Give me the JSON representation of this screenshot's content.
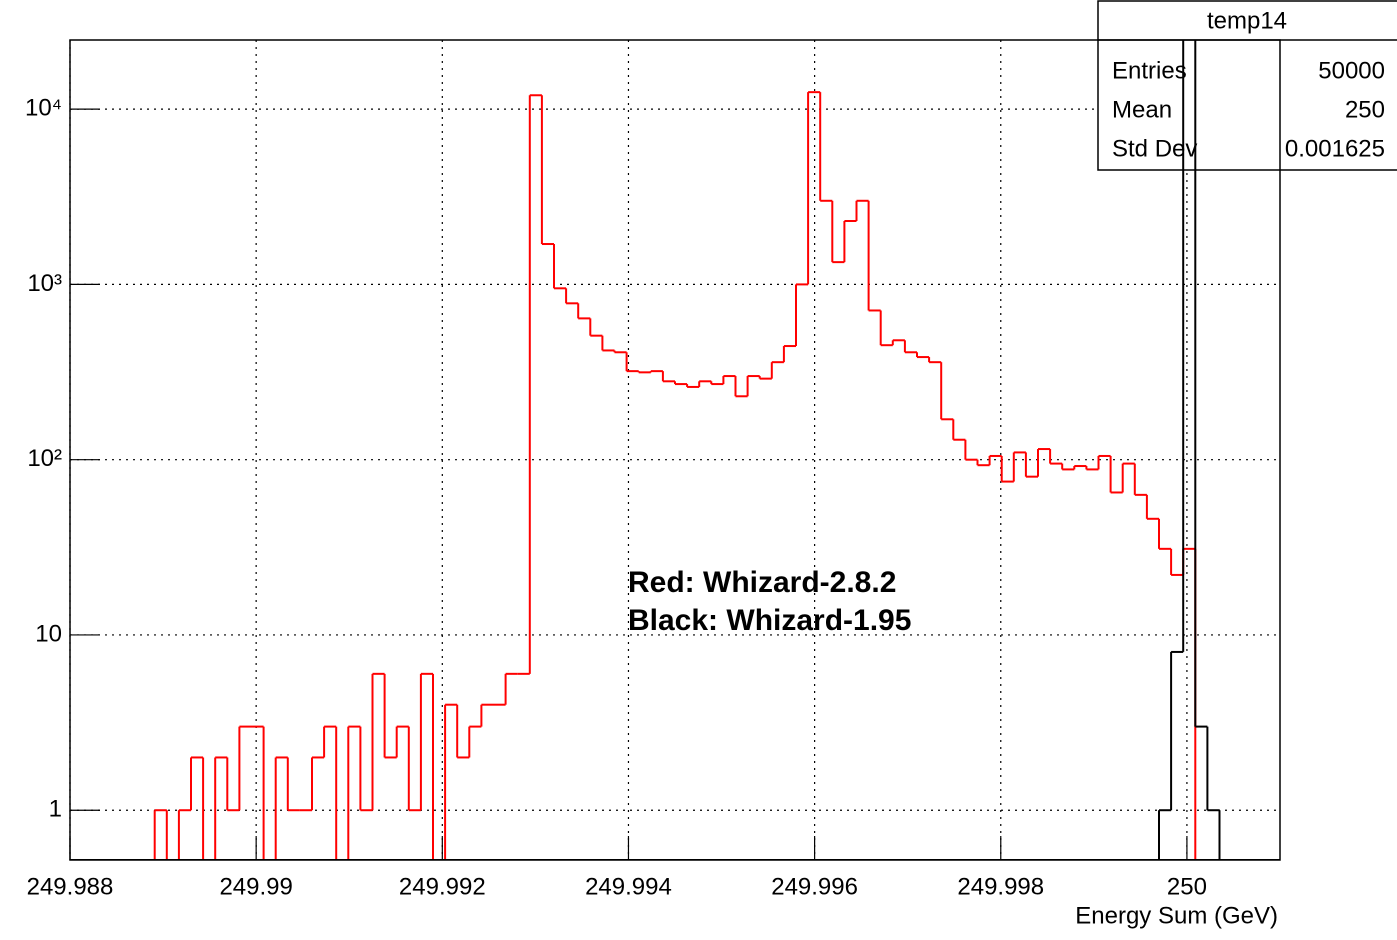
{
  "chart_data": {
    "type": "histogram",
    "xlabel": "Energy Sum (GeV)",
    "log_y": true,
    "grid": true,
    "bins": [
      249.988,
      249.98813,
      249.98826,
      249.98839,
      249.98852,
      249.98865,
      249.98878,
      249.98891,
      249.98904,
      249.98917,
      249.9893,
      249.98943,
      249.98956,
      249.98969,
      249.98982,
      249.98995,
      249.99008,
      249.99021,
      249.99034,
      249.99047,
      249.9906,
      249.99073,
      249.99086,
      249.99099,
      249.99112,
      249.99125,
      249.99138,
      249.99151,
      249.99164,
      249.99177,
      249.9919,
      249.99203,
      249.99216,
      249.99229,
      249.99242,
      249.99255,
      249.99268,
      249.99281,
      249.99294,
      249.99307,
      249.9932,
      249.99333,
      249.99346,
      249.99359,
      249.99372,
      249.99385,
      249.99398,
      249.99411,
      249.99424,
      249.99437,
      249.9945,
      249.99463,
      249.99476,
      249.99489,
      249.99502,
      249.99515,
      249.99528,
      249.99541,
      249.99554,
      249.99567,
      249.9958,
      249.99593,
      249.99606,
      249.99619,
      249.99632,
      249.99645,
      249.99658,
      249.99671,
      249.99684,
      249.99697,
      249.9971,
      249.99723,
      249.99736,
      249.99749,
      249.99762,
      249.99775,
      249.99788,
      249.99801,
      249.99814,
      249.99827,
      249.9984,
      249.99853,
      249.99866,
      249.99879,
      249.99892,
      249.99905,
      249.99918,
      249.99931,
      249.99944,
      249.99957,
      249.9997,
      249.99983,
      249.99996,
      250.00009,
      250.00022,
      250.00035,
      250.00048,
      250.00061,
      250.00074,
      250.00087,
      250.001
    ],
    "series": [
      {
        "color": "#ff0000",
        "values": [
          0,
          0,
          0,
          0,
          0,
          0,
          0,
          1,
          0,
          1,
          2,
          0,
          2,
          1,
          3,
          3,
          0,
          2,
          1,
          1,
          2,
          3,
          0,
          3,
          1,
          6,
          2,
          3,
          1,
          6,
          0,
          4,
          2,
          3,
          4,
          4,
          6,
          6,
          12000,
          1700,
          950,
          780,
          640,
          510,
          420,
          410,
          320,
          315,
          320,
          280,
          270,
          260,
          280,
          270,
          300,
          230,
          300,
          290,
          360,
          445,
          1000,
          12500,
          3000,
          1340,
          2300,
          3000,
          710,
          450,
          480,
          410,
          385,
          360,
          170,
          130,
          100,
          93,
          105,
          75,
          110,
          80,
          115,
          95,
          88,
          92,
          88,
          105,
          65,
          95,
          63,
          46,
          31,
          22,
          31,
          0,
          0,
          0,
          0,
          0,
          0,
          0,
          0
        ]
      },
      {
        "color": "#000000",
        "values": [
          0,
          0,
          0,
          0,
          0,
          0,
          0,
          0,
          0,
          0,
          0,
          0,
          0,
          0,
          0,
          0,
          0,
          0,
          0,
          0,
          0,
          0,
          0,
          0,
          0,
          0,
          0,
          0,
          0,
          0,
          0,
          0,
          0,
          0,
          0,
          0,
          0,
          0,
          0,
          0,
          0,
          0,
          0,
          0,
          0,
          0,
          0,
          0,
          0,
          0,
          0,
          0,
          0,
          0,
          0,
          0,
          0,
          0,
          0,
          0,
          0,
          0,
          0,
          0,
          0,
          0,
          0,
          0,
          0,
          0,
          0,
          0,
          0,
          0,
          0,
          0,
          0,
          0,
          0,
          0,
          0,
          0,
          0,
          0,
          0,
          0,
          0,
          0,
          0,
          0,
          1,
          8,
          49987,
          3,
          1,
          0,
          0,
          0,
          0,
          0,
          0
        ]
      }
    ],
    "xlim": [
      249.988,
      250.001
    ],
    "xticks": [
      249.988,
      249.99,
      249.992,
      249.994,
      249.996,
      249.998,
      250
    ],
    "ylim": [
      0.52,
      24800
    ],
    "yticks": [
      1,
      10,
      {
        "value": 100,
        "label": "10²"
      },
      {
        "value": 1000,
        "label": "10³"
      },
      {
        "value": 10000,
        "label": "10⁴"
      }
    ],
    "annotations": [
      {
        "text": "Red: Whizard-2.8.2",
        "color": "#ff0000"
      },
      {
        "text": "Black: Whizard-1.95",
        "color": "#000000"
      }
    ],
    "stats": {
      "title": "temp14",
      "rows": [
        [
          "Entries",
          "50000"
        ],
        [
          "Mean",
          "250"
        ],
        [
          "Std Dev",
          "0.001625"
        ]
      ]
    }
  }
}
